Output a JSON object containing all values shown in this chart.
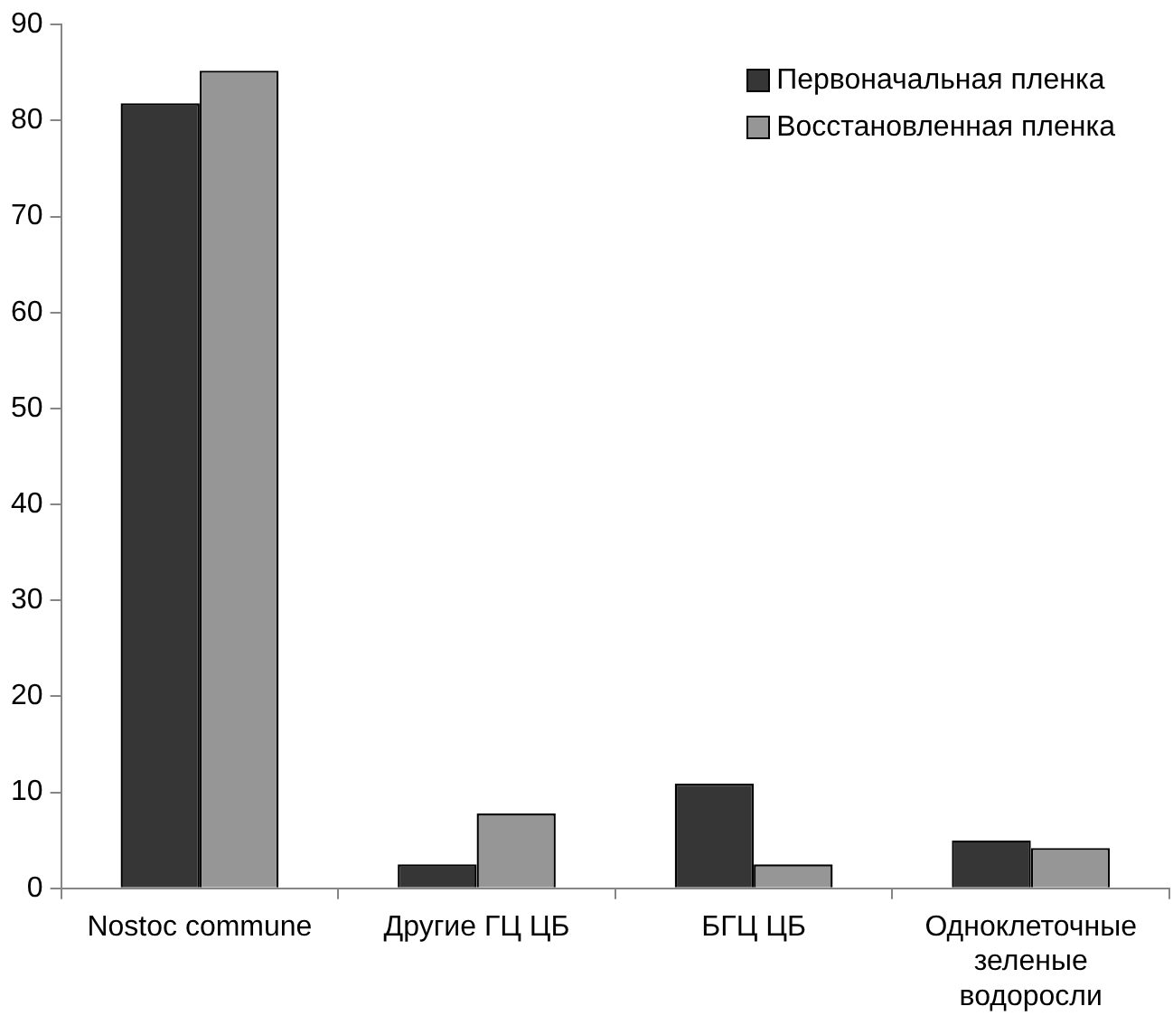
{
  "chart_data": {
    "type": "bar",
    "categories": [
      "Nostoc commune",
      "Другие ГЦ ЦБ",
      "БГЦ ЦБ",
      "Одноклеточные зеленые водоросли"
    ],
    "series": [
      {
        "name": "Первоначальная пленка",
        "color": "#363636",
        "values": [
          81.8,
          2.5,
          10.9,
          5.0
        ]
      },
      {
        "name": "Восстановленная пленка",
        "color": "#969696",
        "values": [
          85.2,
          7.8,
          2.5,
          4.2
        ]
      }
    ],
    "ylim": [
      0,
      90
    ],
    "yticks": [
      0,
      10,
      20,
      30,
      40,
      50,
      60,
      70,
      80,
      90
    ],
    "grid": false,
    "legend": "top right"
  }
}
